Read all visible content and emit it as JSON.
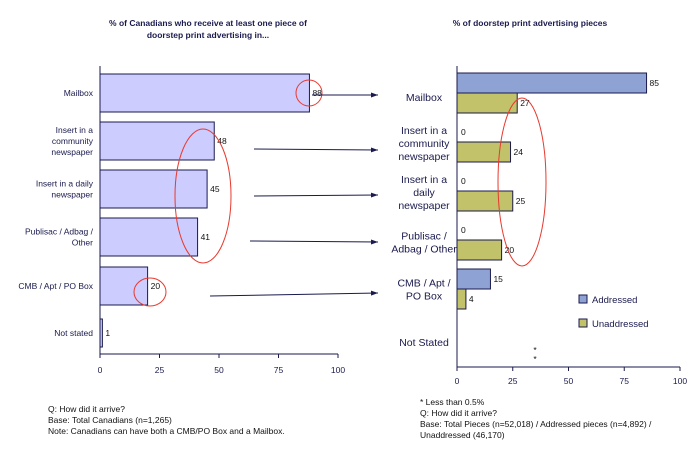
{
  "chart_data": [
    {
      "type": "bar",
      "orientation": "horizontal",
      "title": "% of Canadians who receive at least one piece of doorstep print advertising in...",
      "categories": [
        "Mailbox",
        "Insert in a community newspaper",
        "Insert in a daily newspaper",
        "Publisac / Adbag / Other",
        "CMB / Apt / PO Box",
        "Not stated"
      ],
      "category_lines": [
        [
          "Mailbox"
        ],
        [
          "Insert in a",
          "community",
          "newspaper"
        ],
        [
          "Insert in a daily",
          "newspaper"
        ],
        [
          "Publisac / Adbag /",
          "Other"
        ],
        [
          "CMB / Apt / PO Box"
        ],
        [
          "Not stated"
        ]
      ],
      "values": [
        88,
        48,
        45,
        41,
        20,
        1
      ],
      "xlim": [
        0,
        100
      ],
      "xticks": [
        0,
        25,
        50,
        75,
        100
      ],
      "grid": false,
      "bar_color": "#ccccff",
      "highlight_color": "#e8392e"
    },
    {
      "type": "bar",
      "orientation": "horizontal",
      "title": "% of doorstep print advertising pieces",
      "categories": [
        "Mailbox",
        "Insert in a community newspaper",
        "Insert in a daily newspaper",
        "Publisac / Adbag / Other",
        "CMB / Apt / PO Box",
        "Not Stated"
      ],
      "category_lines": [
        [
          "Mailbox"
        ],
        [
          "Insert in a",
          "community",
          "newspaper"
        ],
        [
          "Insert in a",
          "daily",
          "newspaper"
        ],
        [
          "Publisac /",
          "Adbag / Other"
        ],
        [
          "CMB / Apt /",
          "PO Box"
        ],
        [
          "Not Stated"
        ]
      ],
      "series": [
        {
          "name": "Addressed",
          "values": [
            85,
            0,
            0,
            0,
            15,
            null
          ],
          "labels": [
            "85",
            "0",
            "0",
            "0",
            "15",
            "*"
          ],
          "color": "#8fa2d4"
        },
        {
          "name": "Unaddressed",
          "values": [
            27,
            24,
            25,
            20,
            4,
            null
          ],
          "labels": [
            "27",
            "24",
            "25",
            "20",
            "4",
            "*"
          ],
          "color": "#c2c26a"
        }
      ],
      "xlim": [
        0,
        100
      ],
      "xticks": [
        0,
        25,
        50,
        75,
        100
      ],
      "legend": "bottom-right",
      "grid": false
    }
  ],
  "notes": {
    "left": [
      "Q: How did it arrive?",
      "Base: Total Canadians (n=1,265)",
      "Note: Canadians can have both a CMB/PO Box and a Mailbox."
    ],
    "right": [
      "* Less than 0.5%",
      "Q: How did it arrive?",
      "Base: Total Pieces (n=52,018) / Addressed pieces (n=4,892) /",
      "Unaddressed (46,170)"
    ]
  }
}
